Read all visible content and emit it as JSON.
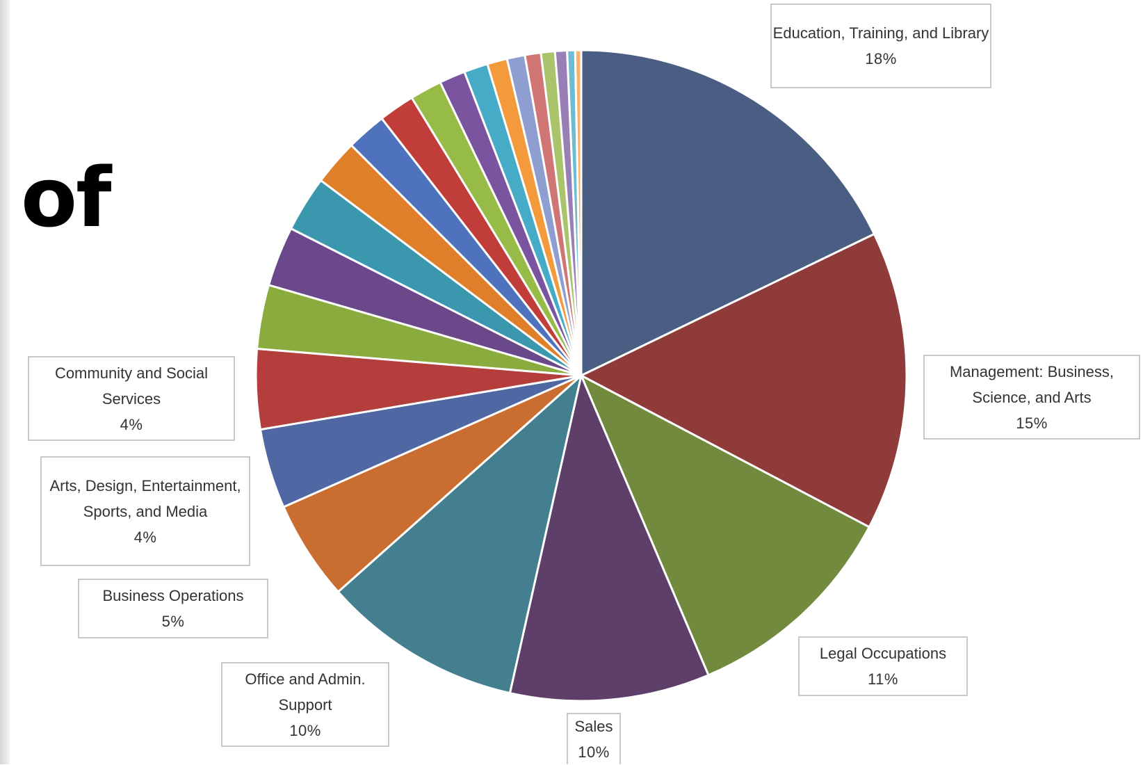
{
  "slide": {
    "title_fragment": "of"
  },
  "chart_data": {
    "type": "pie",
    "title": "",
    "start_angle_deg": 0,
    "direction": "clockwise",
    "slices": [
      {
        "name": "Education, Training, and Library",
        "value": 18,
        "label": "18%",
        "color": "#4a5d82"
      },
      {
        "name": "Management: Business, Science, and Arts",
        "value": 15,
        "label": "15%",
        "color": "#8e3b3a"
      },
      {
        "name": "Legal Occupations",
        "value": 11,
        "label": "11%",
        "color": "#728a3e"
      },
      {
        "name": "Sales",
        "value": 10,
        "label": "10%",
        "color": "#5e3f6a"
      },
      {
        "name": "Office and Admin. Support",
        "value": 10,
        "label": "10%",
        "color": "#437f8e"
      },
      {
        "name": "Business Operations",
        "value": 5,
        "label": "5%",
        "color": "#c96d30"
      },
      {
        "name": "Arts, Design, Entertainment, Sports, and Media",
        "value": 4,
        "label": "4%",
        "color": "#4f68a4"
      },
      {
        "name": "Community and Social Services",
        "value": 4,
        "label": "4%",
        "color": "#b33e3c"
      },
      {
        "value": 3.2,
        "color": "#8aac3e"
      },
      {
        "value": 3.0,
        "color": "#6a4889"
      },
      {
        "value": 2.8,
        "color": "#3a97ad"
      },
      {
        "value": 2.3,
        "color": "#e07f2a"
      },
      {
        "value": 2.0,
        "color": "#4f72bd"
      },
      {
        "value": 1.8,
        "color": "#c03d3a"
      },
      {
        "value": 1.6,
        "color": "#97bb47"
      },
      {
        "value": 1.3,
        "color": "#7b54a0"
      },
      {
        "value": 1.2,
        "color": "#45abc6"
      },
      {
        "value": 1.0,
        "color": "#f39a3c"
      },
      {
        "value": 0.9,
        "color": "#8f9ed0"
      },
      {
        "value": 0.8,
        "color": "#cf7573"
      },
      {
        "value": 0.7,
        "color": "#a9c46b"
      },
      {
        "value": 0.6,
        "color": "#9880b7"
      },
      {
        "value": 0.4,
        "color": "#6ebcd4"
      },
      {
        "value": 0.3,
        "color": "#f7b26b"
      }
    ]
  }
}
